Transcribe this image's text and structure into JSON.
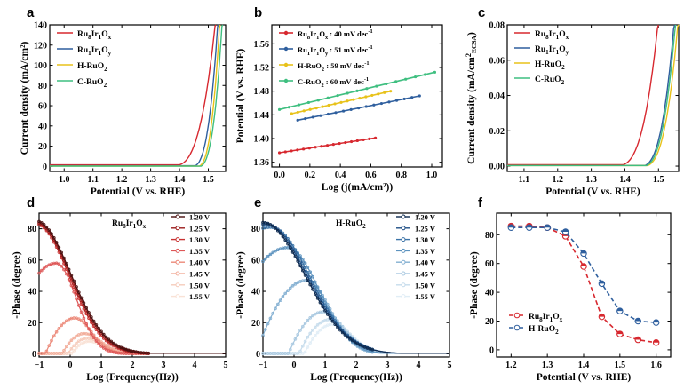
{
  "colors": {
    "ru8": "#d7282f",
    "ru1": "#2f5f9e",
    "hruo2": "#e8c21a",
    "cruo2": "#3fbf80",
    "red_seq": [
      "#4a1010",
      "#9b1c1c",
      "#c83232",
      "#de5858",
      "#ec8a7a",
      "#f2ad9a",
      "#f6ccbc",
      "#f9e2d6"
    ],
    "blue_seq": [
      "#0e2a4f",
      "#1f4f86",
      "#3c74a8",
      "#5d93bf",
      "#84b0d2",
      "#a8c8e0",
      "#c6dcec",
      "#e0edf6"
    ]
  },
  "chart_data": [
    {
      "id": "a",
      "panel_label": "a",
      "type": "line",
      "xlabel": "Potential (V vs. RHE)",
      "ylabel": "Current density (mA/cm²)",
      "xlim": [
        0.95,
        1.56
      ],
      "ylim": [
        -5,
        140
      ],
      "xticks": [
        "1.0",
        "1.1",
        "1.2",
        "1.3",
        "1.4",
        "1.5"
      ],
      "yticks": [
        "0",
        "20",
        "40",
        "60",
        "80",
        "100",
        "120",
        "140"
      ],
      "legend": [
        {
          "label_main": "Ru",
          "label_sub1": "8",
          "label_mid": "Ir",
          "label_sub2": "1",
          "label_end": "O",
          "label_sub3": "x"
        },
        {
          "label_main": "Ru",
          "label_sub1": "1",
          "label_mid": "Ir",
          "label_sub2": "1",
          "label_end": "O",
          "label_sub3": "y"
        },
        {
          "label_main": "H-RuO",
          "label_sub1": "2"
        },
        {
          "label_main": "C-RuO",
          "label_sub1": "2"
        }
      ],
      "series": [
        {
          "name": "Ru8Ir1Ox",
          "color_key": "ru8",
          "onset": 1.4,
          "k": 0.072,
          "base": 1.5
        },
        {
          "name": "Ru1Ir1Oy",
          "color_key": "ru1",
          "onset": 1.455,
          "k": 0.045,
          "base": 0.6
        },
        {
          "name": "H-RuO2",
          "color_key": "hruo2",
          "onset": 1.47,
          "k": 0.04,
          "base": 0.3
        },
        {
          "name": "C-RuO2",
          "color_key": "cruo2",
          "onset": 1.475,
          "k": 0.042,
          "base": 0.2
        }
      ]
    },
    {
      "id": "b",
      "panel_label": "b",
      "type": "line",
      "xlabel": "Log (j(mA/cm²))",
      "ylabel": "Potential (V vs. RHE)",
      "xlim": [
        -0.05,
        1.07
      ],
      "ylim": [
        1.352,
        1.592
      ],
      "xticks": [
        "0.0",
        "0.2",
        "0.4",
        "0.6",
        "0.8",
        "1.0"
      ],
      "yticks": [
        "1.36",
        "1.40",
        "1.44",
        "1.48",
        "1.52",
        "1.56"
      ],
      "legend": [
        {
          "label_main": "Ru",
          "label_sub1": "8",
          "label_mid": "Ir",
          "label_sub2": "1",
          "label_end": "O",
          "label_sub3": "x",
          "label_tail": " : 40 mV dec",
          "label_sup": "-1"
        },
        {
          "label_main": "Ru",
          "label_sub1": "1",
          "label_mid": "Ir",
          "label_sub2": "1",
          "label_end": "O",
          "label_sub3": "y",
          "label_tail": " : 51 mV dec",
          "label_sup": "-1"
        },
        {
          "label_main": "H-RuO",
          "label_sub1": "2",
          "label_tail": " : 59 mV dec",
          "label_sup": "-1"
        },
        {
          "label_main": "C-RuO",
          "label_sub1": "2",
          "label_tail": " : 60 mV dec",
          "label_sup": "-1"
        }
      ],
      "series": [
        {
          "name": "Ru8Ir1Ox",
          "color_key": "ru8",
          "x": [
            0.0,
            0.63
          ],
          "y": [
            1.376,
            1.401
          ]
        },
        {
          "name": "Ru1Ir1Oy",
          "color_key": "ru1",
          "x": [
            0.12,
            0.92
          ],
          "y": [
            1.431,
            1.472
          ]
        },
        {
          "name": "H-RuO2",
          "color_key": "hruo2",
          "x": [
            0.08,
            0.73
          ],
          "y": [
            1.442,
            1.48
          ]
        },
        {
          "name": "C-RuO2",
          "color_key": "cruo2",
          "x": [
            0.0,
            1.02
          ],
          "y": [
            1.449,
            1.512
          ]
        }
      ]
    },
    {
      "id": "c",
      "panel_label": "c",
      "type": "line",
      "xlabel": "Potential (V vs. RHE)",
      "ylabel": "Current density (mA/cm²ECSA)",
      "ylabel_main": "Current density (mA/cm",
      "ylabel_sup": "2",
      "ylabel_sub": "ECSA",
      "ylabel_end": ")",
      "xlim": [
        1.05,
        1.56
      ],
      "ylim": [
        -0.003,
        0.08
      ],
      "xticks": [
        "1.1",
        "1.2",
        "1.3",
        "1.4",
        "1.5"
      ],
      "yticks": [
        "0.00",
        "0.02",
        "0.04",
        "0.06",
        "0.08"
      ],
      "legend": [
        {
          "label_main": "Ru",
          "label_sub1": "8",
          "label_mid": "Ir",
          "label_sub2": "1",
          "label_end": "O",
          "label_sub3": "x"
        },
        {
          "label_main": "Ru",
          "label_sub1": "1",
          "label_mid": "Ir",
          "label_sub2": "1",
          "label_end": "O",
          "label_sub3": "y"
        },
        {
          "label_main": "H-RuO",
          "label_sub1": "2"
        },
        {
          "label_main": "C-RuO",
          "label_sub1": "2"
        }
      ],
      "series": [
        {
          "name": "Ru8Ir1Ox",
          "color_key": "ru8",
          "onset": 1.395,
          "k": 0.06,
          "base": 0.0008
        },
        {
          "name": "Ru1Ir1Oy",
          "color_key": "ru1",
          "onset": 1.46,
          "k": 0.05,
          "base": 0.0004
        },
        {
          "name": "H-RuO2",
          "color_key": "hruo2",
          "onset": 1.468,
          "k": 0.052,
          "base": 0.0003
        },
        {
          "name": "C-RuO2",
          "color_key": "cruo2",
          "onset": 1.464,
          "k": 0.05,
          "base": 0.0003
        }
      ]
    },
    {
      "id": "d",
      "panel_label": "d",
      "type": "line",
      "title_main": "Ru",
      "title_sub1": "8",
      "title_mid": "Ir",
      "title_sub2": "1",
      "title_end": "O",
      "title_sub3": "x",
      "xlabel": "Log (Frequency(Hz))",
      "ylabel": "-Phase (degree)",
      "xlim": [
        -1,
        5
      ],
      "ylim": [
        -2,
        90
      ],
      "xticks": [
        "−1",
        "0",
        "1",
        "2",
        "3",
        "4",
        "5"
      ],
      "yticks": [
        "0",
        "20",
        "40",
        "60",
        "80"
      ],
      "legend_labels": [
        "1.20 V",
        "1.25 V",
        "1.30 V",
        "1.35 V",
        "1.40 V",
        "1.45 V",
        "1.50 V",
        "1.55 V"
      ],
      "palette_key": "red_seq",
      "series": [
        {
          "name": "1.20 V",
          "peak": 85,
          "center": -1.1,
          "width": 1.45
        },
        {
          "name": "1.25 V",
          "peak": 84,
          "center": -1.1,
          "width": 1.42
        },
        {
          "name": "1.30 V",
          "peak": 83,
          "center": -1.1,
          "width": 1.38
        },
        {
          "name": "1.35 V",
          "peak": 58,
          "center": -0.45,
          "width": 0.85
        },
        {
          "name": "1.40 V",
          "peak": 23,
          "center": 0.15,
          "width": 0.7
        },
        {
          "name": "1.45 V",
          "peak": 13,
          "center": 0.45,
          "width": 0.7
        },
        {
          "name": "1.50 V",
          "peak": 10,
          "center": 0.55,
          "width": 0.7
        },
        {
          "name": "1.55 V",
          "peak": 8,
          "center": 0.6,
          "width": 0.7
        }
      ]
    },
    {
      "id": "e",
      "panel_label": "e",
      "type": "line",
      "title_main": "H-RuO",
      "title_sub1": "2",
      "xlabel": "Log (Frequency(Hz))",
      "ylabel": "-Phase (degree)",
      "xlim": [
        -1,
        5
      ],
      "ylim": [
        -2,
        90
      ],
      "xticks": [
        "−1",
        "0",
        "1",
        "2",
        "3",
        "4",
        "5"
      ],
      "yticks": [
        "0",
        "20",
        "40",
        "60",
        "80"
      ],
      "legend_labels": [
        "1.20 V",
        "1.25 V",
        "1.30 V",
        "1.35 V",
        "1.40 V",
        "1.45 V",
        "1.50 V",
        "1.55 V"
      ],
      "palette_key": "blue_seq",
      "series": [
        {
          "name": "1.20 V",
          "peak": 84,
          "center": -1.0,
          "width": 1.75
        },
        {
          "name": "1.25 V",
          "peak": 83,
          "center": -0.9,
          "width": 1.72
        },
        {
          "name": "1.30 V",
          "peak": 81,
          "center": -0.75,
          "width": 1.65
        },
        {
          "name": "1.35 V",
          "peak": 68,
          "center": -0.2,
          "width": 1.3
        },
        {
          "name": "1.40 V",
          "peak": 47,
          "center": 0.4,
          "width": 1.0
        },
        {
          "name": "1.45 V",
          "peak": 27,
          "center": 0.95,
          "width": 0.85
        },
        {
          "name": "1.50 V",
          "peak": 22,
          "center": 1.15,
          "width": 0.8
        },
        {
          "name": "1.55 V",
          "peak": 19,
          "center": 1.25,
          "width": 0.8
        }
      ]
    },
    {
      "id": "f",
      "panel_label": "f",
      "type": "line",
      "xlabel": "Potential (V vs. RHE)",
      "ylabel": "-Phase (degree)",
      "xlim": [
        1.16,
        1.64
      ],
      "ylim": [
        -5,
        95
      ],
      "xticks": [
        "1.2",
        "1.3",
        "1.4",
        "1.5",
        "1.6"
      ],
      "yticks": [
        "0",
        "20",
        "40",
        "60",
        "80"
      ],
      "x": [
        1.2,
        1.25,
        1.3,
        1.35,
        1.4,
        1.45,
        1.5,
        1.55,
        1.6
      ],
      "legend": [
        {
          "label_main": "Ru",
          "label_sub1": "8",
          "label_mid": "Ir",
          "label_sub2": "1",
          "label_end": "O",
          "label_sub3": "x"
        },
        {
          "label_main": "H-RuO",
          "label_sub1": "2"
        }
      ],
      "series": [
        {
          "name": "Ru8Ir1Ox",
          "color_key": "ru8",
          "values": [
            86,
            86,
            85,
            79,
            58,
            23,
            11,
            7,
            5
          ]
        },
        {
          "name": "H-RuO2",
          "color_key": "ru1",
          "values": [
            85,
            85,
            85,
            82,
            67,
            46,
            27,
            20,
            19
          ]
        }
      ]
    }
  ]
}
